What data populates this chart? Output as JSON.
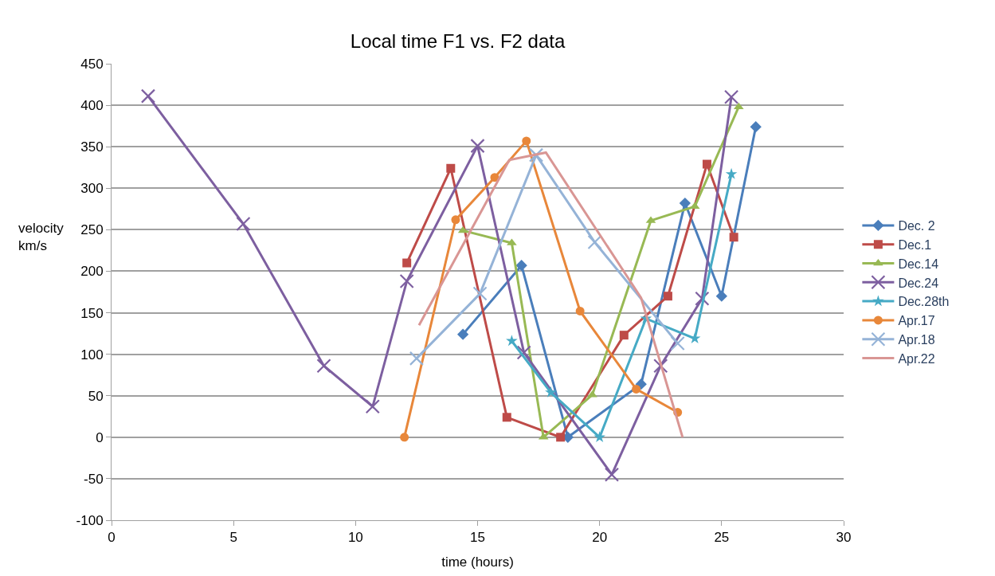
{
  "chart_data": {
    "type": "line",
    "title": "Local time F1 vs. F2 data",
    "xlabel": "time (hours)",
    "ylabel": "velocity\nkm/s",
    "xlim": [
      0,
      30
    ],
    "xticks": [
      0,
      5,
      10,
      15,
      20,
      25,
      30
    ],
    "ylim": [
      -100,
      450
    ],
    "yticks": [
      -100,
      -50,
      0,
      50,
      100,
      150,
      200,
      250,
      300,
      350,
      400,
      450
    ],
    "grid": "y",
    "legend": "right",
    "line_style": "solid",
    "series": [
      {
        "name": "Dec. 2",
        "color": "#4a7ebb",
        "marker": "diamond",
        "x": [
          14.4,
          16.8,
          18.7,
          21.7,
          23.5,
          25.0,
          26.4
        ],
        "values": [
          124,
          207,
          0,
          64,
          282,
          170,
          374
        ]
      },
      {
        "name": "Dec.1",
        "color": "#be4b48",
        "marker": "square",
        "x": [
          12.1,
          13.9,
          16.2,
          18.4,
          21.0,
          22.8,
          24.4,
          25.5
        ],
        "values": [
          210,
          324,
          24,
          0,
          123,
          170,
          329,
          241
        ]
      },
      {
        "name": "Dec.14",
        "color": "#98b954",
        "marker": "triangle",
        "x": [
          14.4,
          16.4,
          17.7,
          19.7,
          22.1,
          23.9,
          25.7
        ],
        "values": [
          249,
          234,
          0,
          51,
          261,
          278,
          398
        ]
      },
      {
        "name": "Dec.24",
        "color": "#7d5fa0",
        "marker": "cross",
        "x": [
          1.5,
          5.4,
          8.7,
          10.7,
          12.1,
          15.0,
          16.9,
          20.5,
          22.5,
          24.2,
          25.4
        ],
        "values": [
          411,
          257,
          86,
          37,
          188,
          351,
          102,
          -45,
          86,
          167,
          410
        ]
      },
      {
        "name": "Dec.28th",
        "color": "#46aac5",
        "marker": "star",
        "x": [
          16.4,
          18.0,
          20.0,
          21.9,
          23.9,
          25.4
        ],
        "values": [
          116,
          54,
          0,
          143,
          119,
          317
        ]
      },
      {
        "name": "Apr.17",
        "color": "#e8873a",
        "marker": "circle",
        "x": [
          12.0,
          14.1,
          15.7,
          17.0,
          19.2,
          21.5,
          23.2
        ],
        "values": [
          0,
          262,
          313,
          357,
          152,
          58,
          30
        ]
      },
      {
        "name": "Apr.18",
        "color": "#95b3d7",
        "marker": "cross",
        "x": [
          12.5,
          15.1,
          17.4,
          19.8,
          23.2
        ],
        "values": [
          95,
          173,
          340,
          235,
          113
        ]
      },
      {
        "name": "Apr.22",
        "color": "#d99694",
        "marker": "none",
        "x": [
          12.6,
          16.3,
          17.8,
          21.7,
          23.4
        ],
        "values": [
          135,
          334,
          343,
          168,
          0
        ]
      }
    ]
  }
}
